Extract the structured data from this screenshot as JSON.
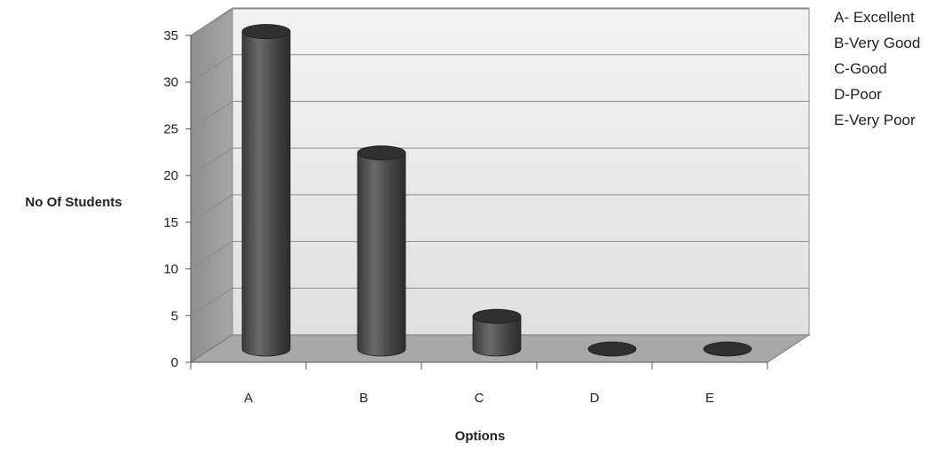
{
  "chart_data": {
    "type": "bar",
    "style": "3d-cylinder",
    "title": "",
    "xlabel": "Options",
    "ylabel": "No Of Students",
    "categories": [
      "A",
      "B",
      "C",
      "D",
      "E"
    ],
    "values": [
      34,
      21,
      3.5,
      0,
      0
    ],
    "ylim": [
      0,
      35
    ],
    "yticks": [
      0,
      5,
      10,
      15,
      20,
      25,
      30,
      35
    ],
    "grid": true,
    "legend_position": "top-right",
    "legend_entries": [
      "A- Excellent",
      "B-Very Good",
      "C-Good",
      "D-Poor",
      "E-Very Poor"
    ],
    "colors": {
      "bar": "#4a4a4a",
      "back_wall": "#e6e6e6",
      "side_wall": "#9a9a9a",
      "floor": "#a8a8a8",
      "grid": "#8a8a8a"
    }
  }
}
